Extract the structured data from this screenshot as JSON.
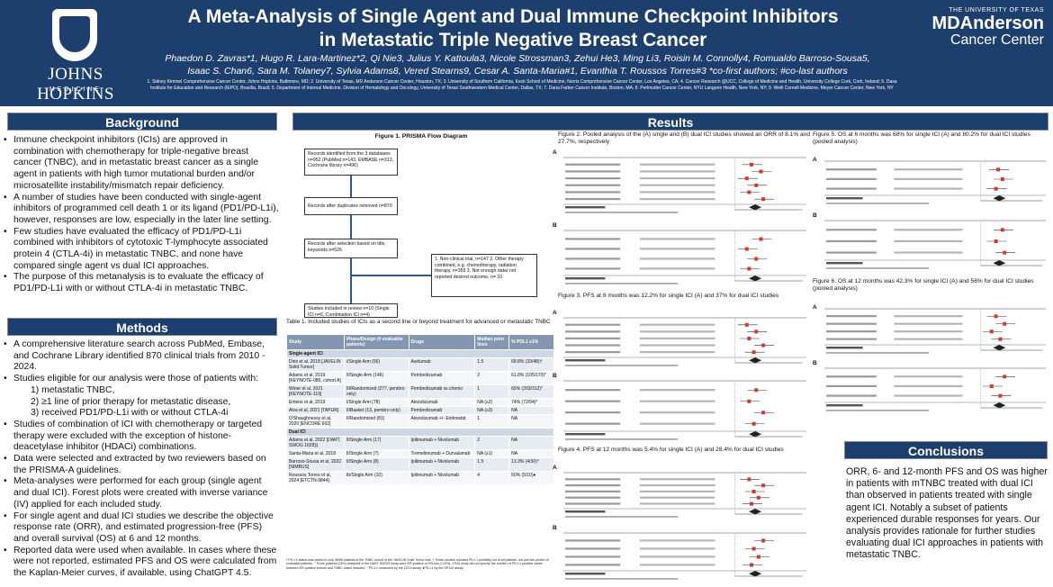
{
  "header": {
    "title_line1": "A Meta-Analysis of Single Agent and Dual Immune Checkpoint Inhibitors",
    "title_line2": "in Metastatic Triple Negative Breast Cancer",
    "authors_line1": "Phaedon D. Zavras*1, Hugo R. Lara-Martinez*2, Qi Nie3, Julius Y. Kattoula3, Nicole Strossman3, Zehui He3, Ming Li3, Roisin M. Connolly4, Romualdo Barroso-Sousa5,",
    "authors_line2": "Isaac S. Chan6, Sara M. Tolaney7, Sylvia Adams8, Vered Stearns9, Cesar A. Santa-Maria#1, Evanthia T. Roussos Torres#3 *co-first authors; #co-last authors",
    "affiliations_line1": "1. Sidney Kimmel Comprehensive Cancer Center, Johns Hopkins, Baltimore, MD; 2. University of Texas, MD Anderson Cancer Center, Houston, TX; 3. University of Southern California, Keck School of Medicine, Norris Comprehensive Cancer Center, Los Angeles, CA; 4. Cancer Research @UCC, College of Medicine and Health, University College Cork, Cork, Ireland; 5. Dasa",
    "affiliations_line2": "Institute for Education and Research (IEPD), Brasília, Brazil; 6. Department of Internal Medicine, Division of Hematology and Oncology, University of Texas Southwestern Medical Center, Dallas, TX; 7. Dana Farber Cancer Institute, Boston, MA; 8. Perlmutter Cancer Center, NYU Langone Health, New York, NY; 9. Weill Cornell Medicine, Meyer Cancer Center, New York, NY",
    "jh_name": "JOHNS HOPKINS",
    "jh_sub": "MEDICINE",
    "mda_univ": "THE UNIVERSITY OF TEXAS",
    "mda_name": "MDAnderson",
    "mda_cc": "Cancer Center"
  },
  "sections": {
    "background": "Background",
    "methods": "Methods",
    "results": "Results",
    "conclusions": "Conclusions"
  },
  "background_bullets": [
    "Immune checkpoint inhibitors (ICIs) are approved in combination with chemotherapy for triple-negative breast cancer (TNBC), and in metastatic breast cancer as a single agent in patients with high tumor mutational burden and/or microsatellite instability/mismatch repair deficiency.",
    "A number of studies have been conducted with single-agent inhibitors of programmed cell death 1 or its ligand (PD1/PD-L1i), however, responses are low, especially in the later line setting.",
    "Few studies have evaluated the efficacy of PD1/PD-L1i combined with inhibitors of cytotoxic T-lymphocyte associated protein 4 (CTLA-4i) in metastatic TNBC, and none have compared single agent vs dual ICI approaches.",
    "The purpose of this metanalysis is to evaluate the efficacy of PD1/PD-L1i with or without CTLA-4i in metastatic TNBC."
  ],
  "methods_bullets": [
    {
      "text": "A comprehensive literature search across PubMed, Embase, and Cochrane Library identified 870 clinical trials from 2010 - 2024.",
      "sub": false
    },
    {
      "text": "Studies eligible for our analysis were those of patients with:",
      "sub": false
    },
    {
      "text": "1)  metastatic TNBC,",
      "sub": true
    },
    {
      "text": "2)  ≥1 line of prior therapy for metastatic disease,",
      "sub": true
    },
    {
      "text": "3)  received PD1/PD-L1i with or without CTLA-4i",
      "sub": true
    },
    {
      "text": "Studies of combination of ICI with chemotherapy or targeted therapy were excluded with the exception of histone-deacetylase inhibitor (HDACi) combinations.",
      "sub": false
    },
    {
      "text": "Data were selected and extracted by two reviewers based on the PRISMA-A guidelines.",
      "sub": false
    },
    {
      "text": "Meta-analyses were performed for each group (single agent and dual ICI). Forest plots were created with inverse variance (IV) applied for each included study.",
      "sub": false
    },
    {
      "text": "For single agent and dual ICI studies we describe the objective response rate (ORR), and estimated progression-free (PFS) and overall survival (OS) at 6 and 12 months.",
      "sub": false
    },
    {
      "text": "Reported data were used when available. In cases where these were not reported, estimated PFS and OS were calculated from the Kaplan-Meier curves, if available, using ChatGPT 4.5.",
      "sub": false
    }
  ],
  "prisma": {
    "title": "Figure 1. PRISMA Flow Diagram",
    "box1": "Records identified from the 3 databases n=952 (PubMed n=143, EMBASE n=313, Cochrane library n=496)",
    "box2": "Records after duplicates removed n=870",
    "box3": "Records after selection based on title, keywords n=526",
    "box4": "1. Non-clinical trial, n=147 2. Other therapy combined, e.g. chemotherapy, radiation therapy, n=359 3. Not enough data/ not reported desired outcome, n= 10",
    "box5": "Studies included in review n=10 (Single ICI n=6, Combination ICI n=4)"
  },
  "table1": {
    "caption": "Table 1. Included studies of ICIs as a second line or beyond treatment for advanced or metastatic TNBC",
    "headers": [
      "Study",
      "Phase/Design (# evaluable patients)",
      "Drugs",
      "Median prior lines",
      "% PDL1 ≥1%"
    ],
    "group_single": "Single-agent ICI",
    "group_dual": "Dual ICI",
    "rows_single": [
      [
        "Dirix et al, 2018 [JAVELIN Solid Tumor]",
        "I/Single Arm (56)",
        "Avelumab",
        "1.5",
        "68.8% (33/48)†"
      ],
      [
        "Adams et al, 2019 [KEYNOTE-086, cohort A]",
        "II/Single Arm (146)",
        "Pembrolizumab",
        "2",
        "61.8% (105/170)°"
      ],
      [
        "Winer et al, 2021 [KEYNOTE-119]",
        "III/Randomized (277, pembro only)",
        "Pembrolizumab vs chemo",
        "1",
        "65% (203/312)°"
      ],
      [
        "Emens et al, 2019",
        "I/Single Arm (78)",
        "Atezolizumab",
        "NA (≥2)",
        "74% (72/94)°"
      ],
      [
        "Alva et al, 2021 [TAPUR]",
        "II/Basket (13, pembro only)",
        "Pembrolizumab",
        "NA (≥3)",
        "NA"
      ],
      [
        "O'Shaughnessy et al, 2020 [ENCORE 602]",
        "II/Randomized (81)",
        "Atezolizumab +/- Entinostat",
        "1",
        "NA"
      ]
    ],
    "rows_dual": [
      [
        "Adams et al, 2022 [DART, SWOG 1609]‡",
        "II/Single Arm (17)",
        "Ipilimumab + Nivolumab",
        "2",
        "NA"
      ],
      [
        "Santa-Maria et al, 2018",
        "II/Single Arm (7)",
        "Tremelimumab + Durvalumab",
        "NA (≥1)",
        "NA"
      ],
      [
        "Barroso-Sousa et al, 2022 [NIMBUS]",
        "II/Single Arm (8)",
        "Ipilimumab + Nivolumab",
        "1.5",
        "13.3% (4/30)°"
      ],
      [
        "Roussos Torres et al, 2024 [ETCTN-9844]",
        "Ib/Single Arm (10)",
        "Ipilimumab + Nivolumab",
        "4",
        "50% (5/10)♦"
      ]
    ],
    "notes": "* PD-L1 status was tested in only 48/58 patients of the TNBC cohort of the JAVELIN Solid Tumor trial. † These studies reported PD-L1 positivity out of all patients, not just the portion of evaluable patients. ° Three patients (24%) analyzed in the DART-SWOG study were ER-positive or ER-low (<10%). ‡This study did not specify the number of PD-L1 positive cases between ER-positive tumors and TNBC cases included. ° PD-L1 measured by the 22C3 assay. ♦PD-L1 by the SP142 assay."
  },
  "figures": {
    "fig2_caption": "Figure 2. Pooled analysis of the (A) single and (B) dual ICI studies showed an ORR of 8.1% and 27.7%, respectively",
    "fig3_caption": "Figure 3. PFS at 6 months was 12.2% for single ICI (A) and 37% for dual ICI studies",
    "fig4_caption": "Figure 4. PFS at 12 months was 5.4% for single ICI (A) and 28.4% for dual ICI studies",
    "fig5_caption": "Figure 5. OS at 6 months was 68% for single ICI (A) and 80.2% for dual ICI studies (pooled analysis)",
    "fig6_caption": "Figure 6. OS at 12 months was 42.3% for single ICI (A) and 56% for dual ICI studies (pooled analysis)",
    "panel_a": "A",
    "panel_b": "B"
  },
  "conclusions_text": "ORR, 6- and 12-month PFS and OS was higher in patients with mTNBC treated with dual ICI than observed in patients treated with single agent ICI. Notably a subset of patients experienced durable responses for years. Our analysis provides rationale for further studies evaluating dual ICI approaches in patients with metastatic TNBC.",
  "colors": {
    "navy": "#1d3f6e",
    "marker_red": "#d23a2e",
    "table_header": "#8497b0"
  }
}
